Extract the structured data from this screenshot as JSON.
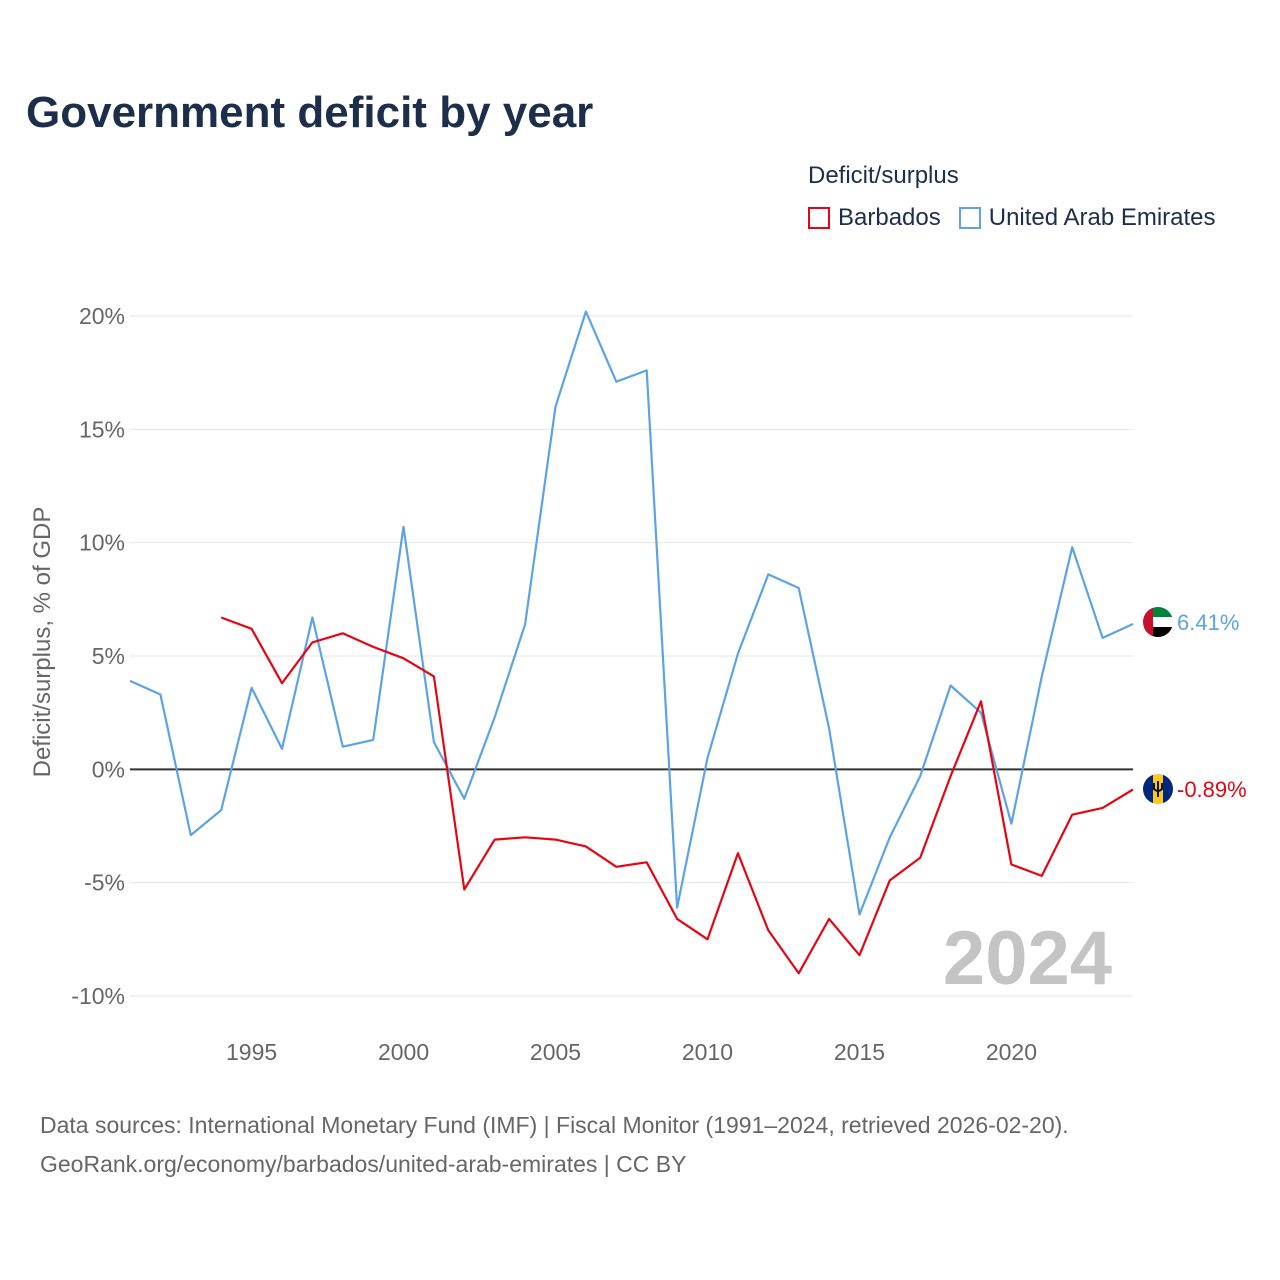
{
  "title": "Government deficit by year",
  "legend": {
    "title": "Deficit/surplus",
    "items": [
      {
        "label": "Barbados",
        "color": "#e30613"
      },
      {
        "label": "United Arab Emirates",
        "color": "#5ba3e6"
      }
    ]
  },
  "chart_data": {
    "type": "line",
    "title": "Government deficit by year",
    "xlabel": "",
    "ylabel": "Deficit/surplus, % of GDP",
    "xlim": [
      1991,
      2024
    ],
    "ylim": [
      -10,
      20
    ],
    "xticks": [
      1995,
      2000,
      2005,
      2010,
      2015,
      2020
    ],
    "yticks": [
      20,
      15,
      10,
      5,
      0,
      -5,
      -10
    ],
    "ytick_labels": [
      "20%",
      "15%",
      "10%",
      "5%",
      "0%",
      "-5%",
      "-10%"
    ],
    "grid": true,
    "watermark_year": "2024",
    "series": [
      {
        "name": "Barbados",
        "color": "#e30613",
        "end_label": "-0.89%",
        "flag_icon": "barbados-flag-icon",
        "x": [
          1994,
          1995,
          1996,
          1997,
          1998,
          1999,
          2000,
          2001,
          2002,
          2003,
          2004,
          2005,
          2006,
          2007,
          2008,
          2009,
          2010,
          2011,
          2012,
          2013,
          2014,
          2015,
          2016,
          2017,
          2018,
          2019,
          2020,
          2021,
          2022,
          2023,
          2024
        ],
        "values": [
          6.7,
          6.2,
          3.8,
          5.6,
          6.0,
          5.4,
          4.9,
          4.1,
          -5.3,
          -3.1,
          -3.0,
          -3.1,
          -3.4,
          -4.3,
          -4.1,
          -6.6,
          -7.5,
          -3.7,
          -7.1,
          -9.0,
          -6.6,
          -8.2,
          -4.9,
          -3.9,
          -0.3,
          3.0,
          -4.2,
          -4.7,
          -2.0,
          -1.7,
          -0.89
        ]
      },
      {
        "name": "United Arab Emirates",
        "color": "#5ba3e6",
        "end_label": "6.41%",
        "flag_icon": "uae-flag-icon",
        "x": [
          1991,
          1992,
          1993,
          1994,
          1995,
          1996,
          1997,
          1998,
          1999,
          2000,
          2001,
          2002,
          2003,
          2004,
          2005,
          2006,
          2007,
          2008,
          2009,
          2010,
          2011,
          2012,
          2013,
          2014,
          2015,
          2016,
          2017,
          2018,
          2019,
          2020,
          2021,
          2022,
          2023,
          2024
        ],
        "values": [
          3.9,
          3.3,
          -2.9,
          -1.8,
          3.6,
          0.9,
          6.7,
          1.0,
          1.3,
          10.7,
          1.2,
          -1.3,
          2.3,
          6.4,
          16.0,
          20.2,
          17.1,
          17.6,
          -6.1,
          0.5,
          5.1,
          8.6,
          8.0,
          1.8,
          -6.4,
          -3.0,
          -0.3,
          3.7,
          2.5,
          -2.4,
          4.1,
          9.8,
          5.8,
          6.41
        ]
      }
    ]
  },
  "footer": {
    "line1": "Data sources: International Monetary Fund (IMF) | Fiscal Monitor (1991–2024, retrieved 2026-02-20).",
    "line2": "GeoRank.org/economy/barbados/united-arab-emirates | CC BY"
  }
}
